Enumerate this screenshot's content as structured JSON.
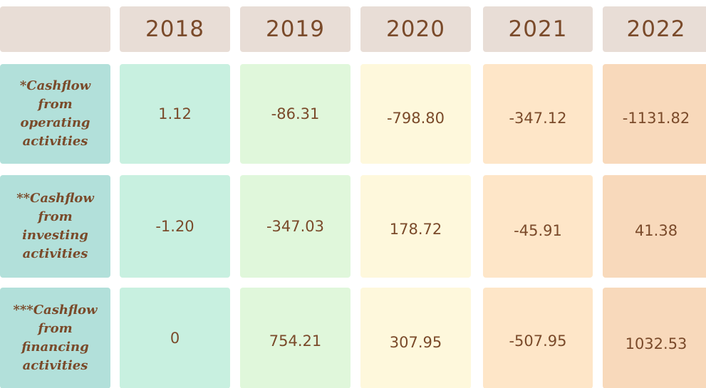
{
  "chart_data": {
    "type": "table",
    "corner": "",
    "columns": [
      "2018",
      "2019",
      "2020",
      "2021",
      "2022"
    ],
    "rows": [
      {
        "label": "*Cashflow\nfrom\noperating\nactivities",
        "values": [
          "1.12",
          "-86.31",
          "-798.80",
          "-347.12",
          "-1131.82"
        ]
      },
      {
        "label": "**Cashflow\nfrom\ninvesting\nactivities",
        "values": [
          "-1.20",
          "-347.03",
          "178.72",
          "-45.91",
          "41.38"
        ]
      },
      {
        "label": "***Cashflow\nfrom\nfinancing\nactivities",
        "values": [
          "0",
          "754.21",
          "307.95",
          "-507.95",
          "1032.53"
        ]
      }
    ]
  },
  "colors": {
    "header_bg": "#e8ddd6",
    "label_bg": "#b2e0da",
    "text": "#7a4a2a",
    "column_bg": [
      "#c8f0e0",
      "#e0f7db",
      "#fef8dc",
      "#fee6c8",
      "#f8d9bb"
    ]
  }
}
